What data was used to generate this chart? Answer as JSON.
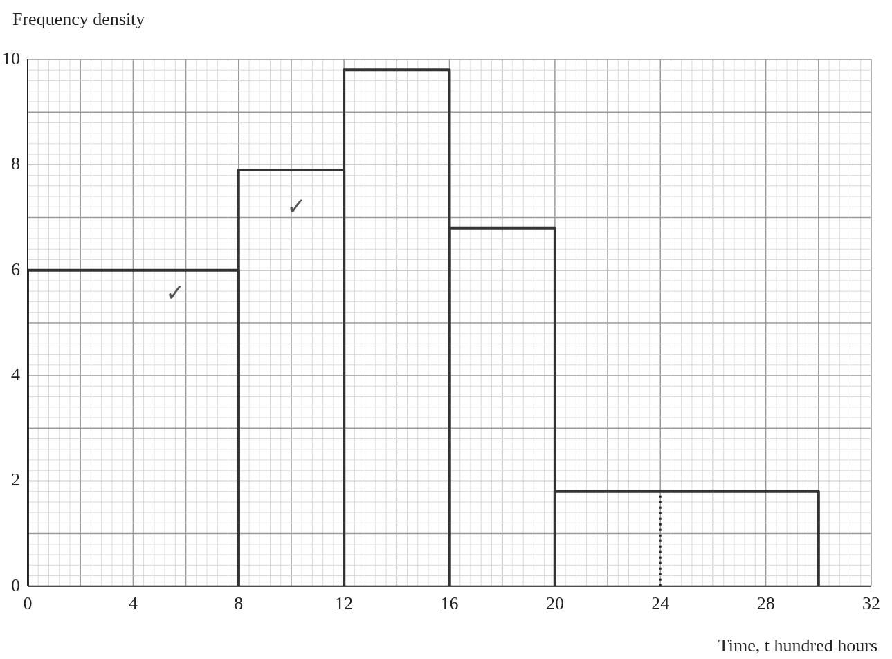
{
  "chart_data": {
    "type": "histogram",
    "xlabel": "Time, t hundred hours",
    "ylabel": "Frequency density",
    "bins": [
      0,
      8,
      12,
      16,
      20,
      30
    ],
    "values": [
      6,
      7.9,
      9.8,
      6.8,
      1.8
    ],
    "color": "#333333",
    "xlim": [
      0,
      32
    ],
    "xticks": [
      0,
      4,
      8,
      12,
      16,
      20,
      24,
      28,
      32
    ],
    "ylim": [
      0,
      10
    ],
    "yticks": [
      0,
      2,
      4,
      6,
      8,
      10
    ],
    "grid": true,
    "ref_lines": [
      {
        "axis": "x",
        "value": 24,
        "line_style": "dotted"
      }
    ],
    "annotations": [
      "✓",
      "✓"
    ]
  }
}
